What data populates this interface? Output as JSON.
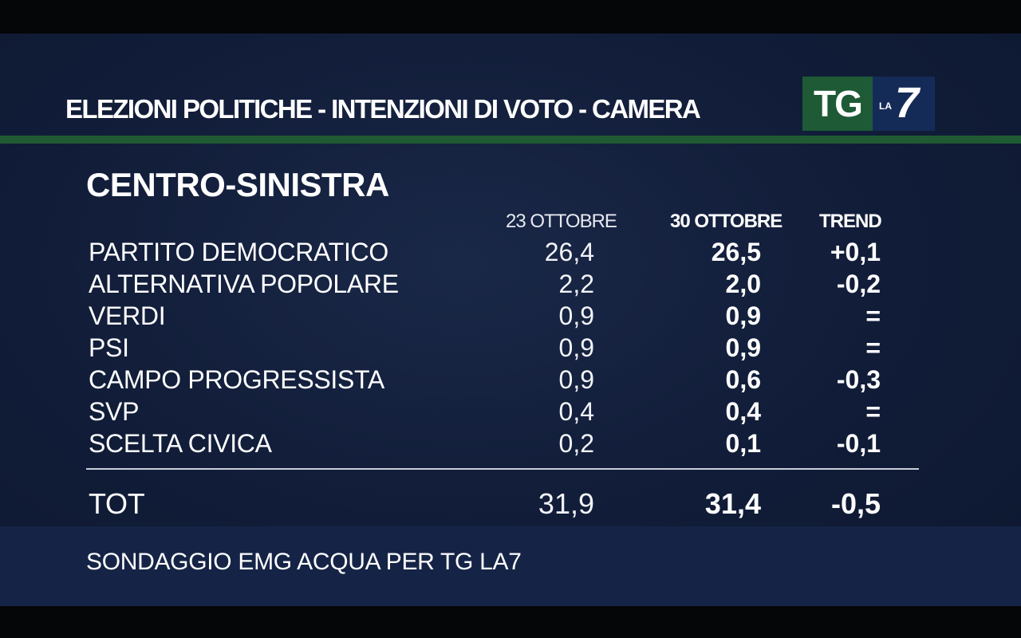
{
  "header": {
    "title": "ELEZIONI POLITICHE - INTENZIONI DI VOTO - CAMERA",
    "logo": {
      "tg": "TG",
      "la": "LA",
      "seven": "7",
      "tg_color": "#1e5a35",
      "la7_color": "#152b57"
    },
    "rule_color": "#1f5a33"
  },
  "section": {
    "title": "CENTRO-SINISTRA"
  },
  "columns": {
    "date1": "23 OTTOBRE",
    "date2": "30 OTTOBRE",
    "trend": "TREND"
  },
  "rows": [
    {
      "party": "PARTITO DEMOCRATICO",
      "v1": "26,4",
      "v2": "26,5",
      "trend": "+0,1"
    },
    {
      "party": "ALTERNATIVA POPOLARE",
      "v1": "2,2",
      "v2": "2,0",
      "trend": "-0,2"
    },
    {
      "party": "VERDI",
      "v1": "0,9",
      "v2": "0,9",
      "trend": "="
    },
    {
      "party": "PSI",
      "v1": "0,9",
      "v2": "0,9",
      "trend": "="
    },
    {
      "party": "CAMPO PROGRESSISTA",
      "v1": "0,9",
      "v2": "0,6",
      "trend": "-0,3"
    },
    {
      "party": "SVP",
      "v1": "0,4",
      "v2": "0,4",
      "trend": "="
    },
    {
      "party": "SCELTA CIVICA",
      "v1": "0,2",
      "v2": "0,1",
      "trend": "-0,1"
    }
  ],
  "total": {
    "label": "TOT",
    "v1": "31,9",
    "v2": "31,4",
    "trend": "-0,5"
  },
  "footer": {
    "source": "SONDAGGIO EMG ACQUA PER TG LA7"
  },
  "colors": {
    "background": "#121e3a",
    "text": "#ffffff"
  }
}
